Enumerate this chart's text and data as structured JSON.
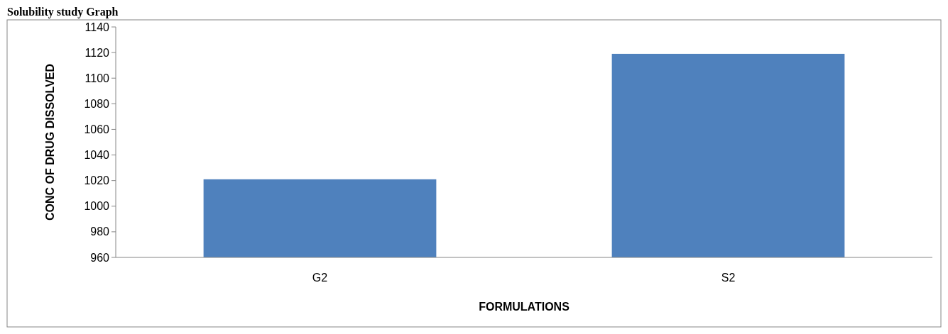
{
  "chart_data": {
    "type": "bar",
    "title": "Solubility study Graph",
    "xlabel": "FORMULATIONS",
    "ylabel": "CONC OF DRUG DISSOLVED",
    "categories": [
      "G2",
      "S2"
    ],
    "values": [
      1021,
      1119
    ],
    "color": "#4f81bd",
    "ylim": [
      960,
      1140
    ],
    "yticks": [
      960,
      980,
      1000,
      1020,
      1040,
      1060,
      1080,
      1100,
      1120,
      1140
    ],
    "grid": false
  }
}
